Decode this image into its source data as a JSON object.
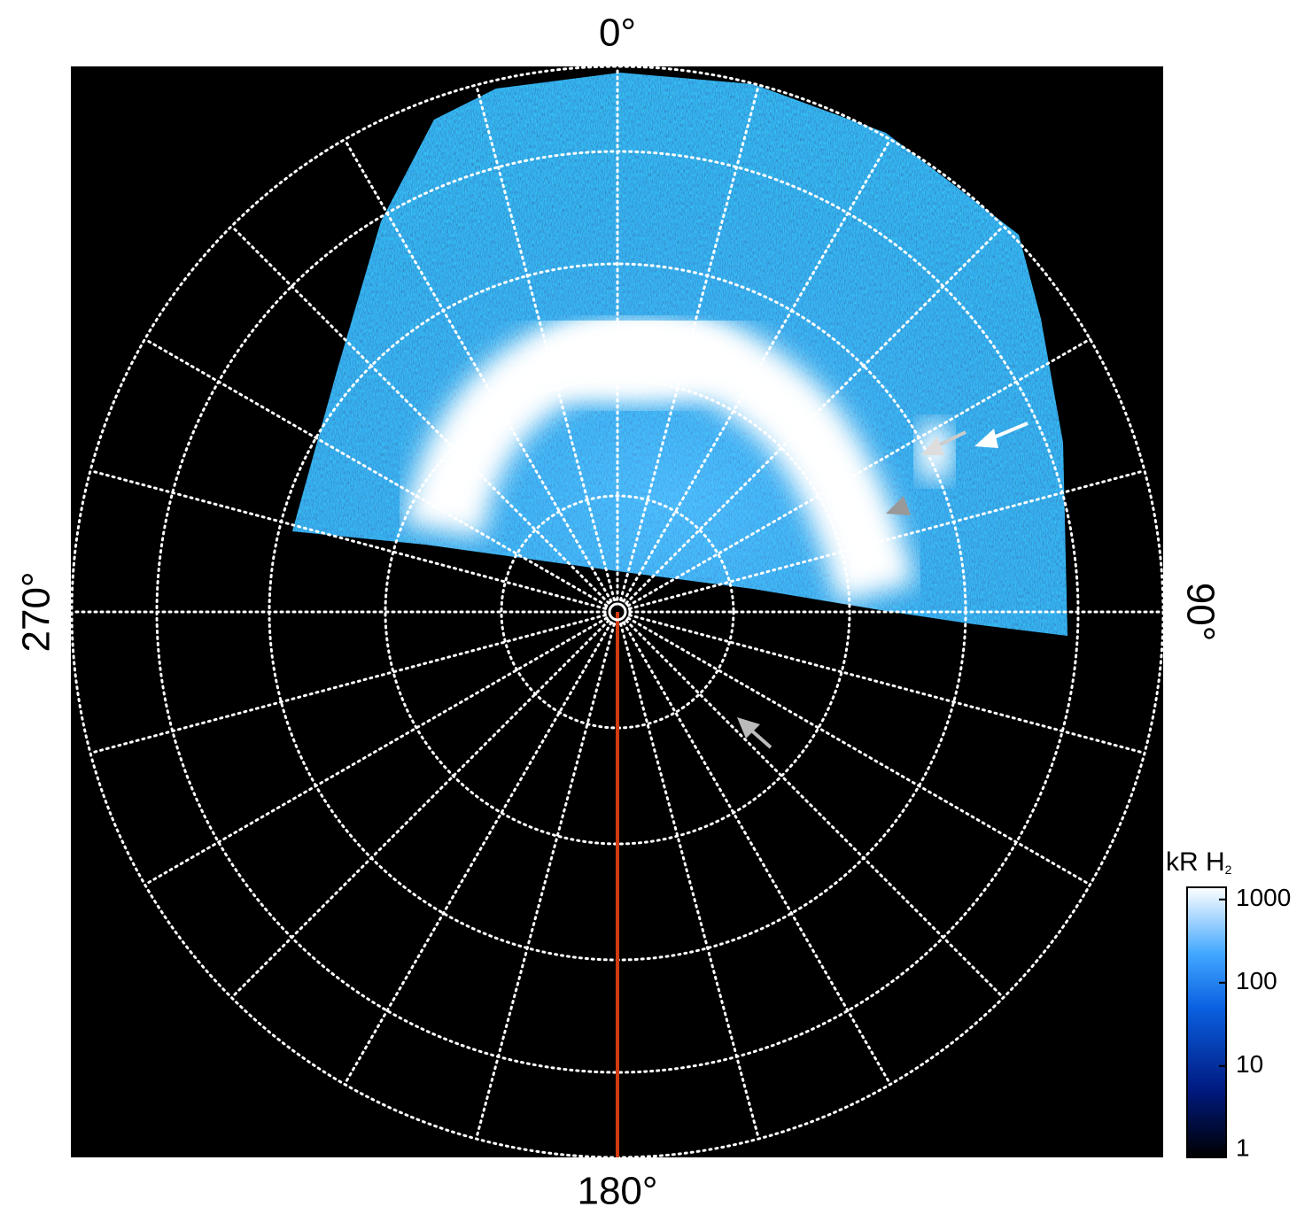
{
  "labels": {
    "top": "0°",
    "right": "90°",
    "bottom": "180°",
    "left": "270°"
  },
  "colorbar": {
    "title": "kR H",
    "title_subscript": "2",
    "scale": "log",
    "lim": [
      0.8,
      1400
    ],
    "ticks": [
      1,
      10,
      100,
      1000
    ]
  }
}
